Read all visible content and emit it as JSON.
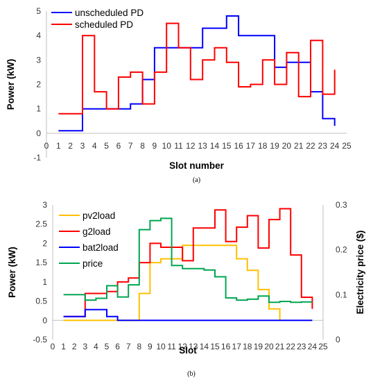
{
  "chart_data": [
    {
      "type": "line",
      "step": true,
      "caption": "(a)",
      "xlabel": "Slot number",
      "ylabel": "Power (kW)",
      "xlim": [
        0,
        25
      ],
      "ylim": [
        -1,
        5
      ],
      "xticks": [
        0,
        1,
        2,
        3,
        4,
        5,
        6,
        7,
        8,
        9,
        10,
        11,
        12,
        13,
        14,
        15,
        16,
        17,
        18,
        19,
        20,
        21,
        22,
        23,
        24,
        25
      ],
      "yticks": [
        -1,
        0,
        1,
        2,
        3,
        4,
        5
      ],
      "grid": false,
      "legend_position": "top-left",
      "series": [
        {
          "name": "unscheduled PD",
          "color": "#0000ff",
          "x": [
            1,
            2,
            3,
            4,
            5,
            6,
            7,
            8,
            9,
            10,
            11,
            12,
            13,
            14,
            15,
            16,
            17,
            18,
            19,
            20,
            21,
            22,
            23,
            24
          ],
          "values": [
            0.1,
            0.1,
            1.0,
            1.0,
            1.0,
            1.0,
            1.2,
            2.2,
            3.5,
            3.5,
            3.5,
            3.5,
            4.3,
            4.3,
            4.8,
            4.0,
            4.0,
            4.0,
            2.7,
            2.9,
            2.9,
            1.7,
            0.6,
            0.3
          ]
        },
        {
          "name": "scheduled PD",
          "color": "#ff0000",
          "x": [
            1,
            2,
            3,
            4,
            5,
            6,
            7,
            8,
            9,
            10,
            11,
            12,
            13,
            14,
            15,
            16,
            17,
            18,
            19,
            20,
            21,
            22,
            23,
            24
          ],
          "values": [
            0.8,
            0.8,
            4.0,
            1.7,
            1.0,
            2.3,
            2.5,
            1.2,
            2.5,
            4.5,
            3.5,
            2.2,
            3.0,
            3.5,
            2.9,
            1.9,
            2.0,
            3.0,
            2.0,
            3.3,
            1.5,
            3.8,
            1.6,
            2.6
          ]
        }
      ]
    },
    {
      "type": "line",
      "step": true,
      "caption": "(b)",
      "xlabel": "Slot",
      "ylabel": "Power (kW)",
      "y2label": "Electricity price ($)",
      "xlim": [
        0,
        25
      ],
      "ylim": [
        -0.5,
        3
      ],
      "y2lim": [
        0,
        0.3
      ],
      "xticks": [
        0,
        1,
        2,
        3,
        4,
        5,
        6,
        7,
        8,
        9,
        10,
        11,
        12,
        13,
        14,
        15,
        16,
        17,
        18,
        19,
        20,
        21,
        22,
        23,
        24,
        25
      ],
      "yticks": [
        -0.5,
        0,
        0.5,
        1,
        1.5,
        2,
        2.5,
        3
      ],
      "ytick_labels": [
        "-0.5",
        "0",
        "0.5",
        "1",
        "1.5",
        "2",
        "2.5",
        "3"
      ],
      "y2ticks": [
        0,
        0.1,
        0.2,
        0.3
      ],
      "y2tick_labels": [
        "0",
        "0.1",
        "0.2",
        "0.3"
      ],
      "grid": false,
      "legend_position": "top-left",
      "series": [
        {
          "name": "pv2load",
          "color": "#ffc000",
          "axis": "left",
          "x": [
            1,
            2,
            3,
            4,
            5,
            6,
            7,
            8,
            9,
            10,
            11,
            12,
            13,
            14,
            15,
            16,
            17,
            18,
            19,
            20,
            21
          ],
          "values": [
            0,
            0,
            0,
            0,
            0,
            0,
            0,
            0.7,
            1.5,
            1.6,
            1.6,
            1.95,
            1.95,
            1.95,
            1.95,
            1.95,
            1.6,
            1.3,
            0.8,
            0.3,
            0
          ]
        },
        {
          "name": "g2load",
          "color": "#ff0000",
          "axis": "left",
          "x": [
            1,
            2,
            3,
            4,
            5,
            6,
            7,
            8,
            9,
            10,
            11,
            12,
            13,
            14,
            15,
            16,
            17,
            18,
            19,
            20,
            21,
            22,
            23,
            24
          ],
          "values": [
            0.1,
            0.1,
            0.7,
            0.7,
            0.75,
            1.0,
            1.1,
            1.5,
            2.0,
            1.9,
            1.9,
            1.55,
            2.4,
            2.4,
            2.87,
            2.05,
            2.42,
            2.72,
            1.88,
            2.62,
            2.9,
            1.7,
            0.6,
            0.3
          ]
        },
        {
          "name": "bat2load",
          "color": "#0000ff",
          "axis": "left",
          "x": [
            1,
            2,
            3,
            4,
            5,
            6,
            7,
            8,
            9,
            10,
            11,
            12,
            13,
            14,
            15,
            16,
            17,
            18,
            19,
            20,
            21,
            22,
            23,
            24
          ],
          "values": [
            0.1,
            0.1,
            0.28,
            0.28,
            0.1,
            0,
            0,
            0,
            0,
            0,
            0,
            0,
            0,
            0,
            0,
            0,
            0,
            0,
            0,
            0,
            0,
            0,
            0,
            0
          ]
        },
        {
          "name": "price",
          "color": "#00a550",
          "axis": "right",
          "x": [
            1,
            2,
            3,
            4,
            5,
            6,
            7,
            8,
            9,
            10,
            11,
            12,
            13,
            14,
            15,
            16,
            17,
            18,
            19,
            20,
            21,
            22,
            23,
            24
          ],
          "values": [
            0.1,
            0.1,
            0.088,
            0.092,
            0.12,
            0.095,
            0.122,
            0.245,
            0.265,
            0.27,
            0.165,
            0.158,
            0.158,
            0.155,
            0.14,
            0.093,
            0.088,
            0.09,
            0.097,
            0.083,
            0.085,
            0.083,
            0.084,
            0.084
          ]
        }
      ]
    }
  ]
}
